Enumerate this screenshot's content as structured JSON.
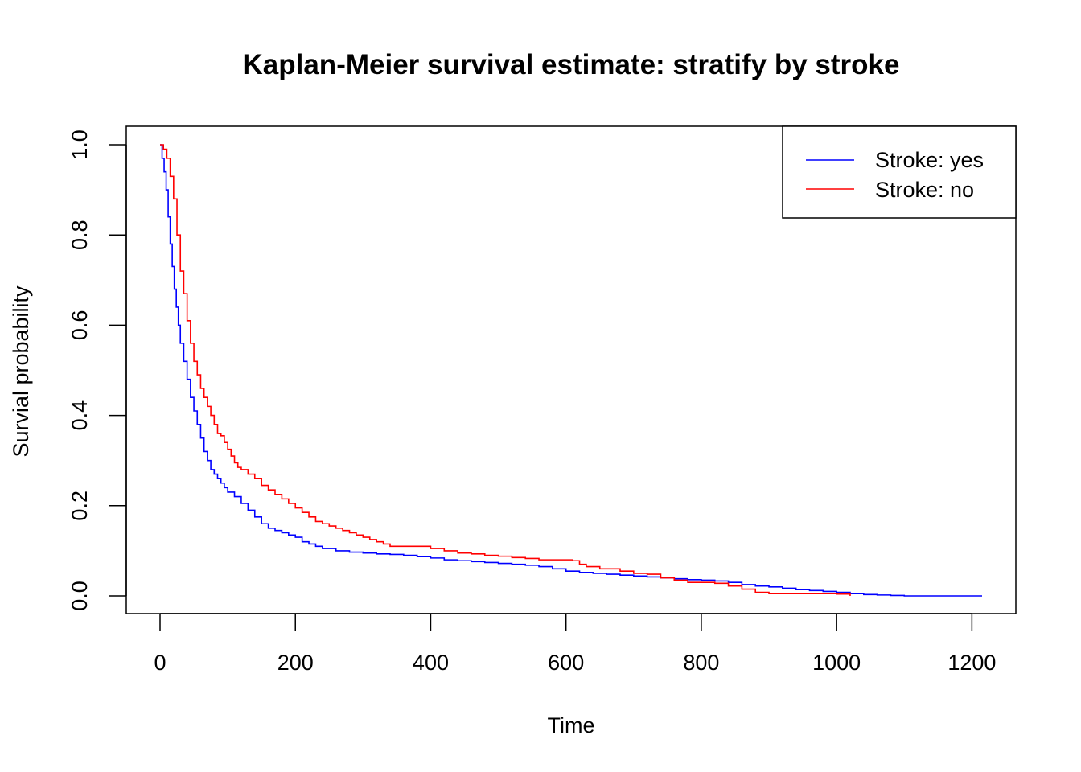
{
  "chart_data": {
    "type": "line",
    "step": true,
    "title": "Kaplan-Meier survival estimate: stratify by stroke",
    "xlabel": "Time",
    "ylabel": "Survial probability",
    "xlim": [
      0,
      1215
    ],
    "ylim": [
      0,
      1
    ],
    "xticks": [
      0,
      200,
      400,
      600,
      800,
      1000,
      1200
    ],
    "yticks": [
      "0.0",
      "0.2",
      "0.4",
      "0.6",
      "0.8",
      "1.0"
    ],
    "grid": false,
    "legend": {
      "position": "top-right"
    },
    "series": [
      {
        "name": "Stroke: yes",
        "color": "#0000ff",
        "x": [
          0,
          3,
          6,
          9,
          12,
          15,
          18,
          21,
          24,
          27,
          30,
          35,
          40,
          45,
          50,
          55,
          60,
          65,
          70,
          75,
          80,
          85,
          90,
          95,
          100,
          110,
          120,
          130,
          140,
          150,
          160,
          170,
          180,
          190,
          200,
          210,
          220,
          230,
          240,
          260,
          280,
          300,
          320,
          340,
          360,
          380,
          400,
          420,
          440,
          460,
          480,
          500,
          520,
          540,
          560,
          580,
          600,
          620,
          640,
          660,
          680,
          700,
          720,
          740,
          760,
          780,
          800,
          820,
          840,
          860,
          880,
          900,
          920,
          940,
          960,
          980,
          1000,
          1020,
          1040,
          1060,
          1080,
          1100,
          1150,
          1215
        ],
        "y": [
          1.0,
          0.97,
          0.94,
          0.9,
          0.84,
          0.78,
          0.73,
          0.68,
          0.64,
          0.6,
          0.56,
          0.52,
          0.48,
          0.44,
          0.41,
          0.38,
          0.35,
          0.32,
          0.3,
          0.28,
          0.27,
          0.26,
          0.25,
          0.24,
          0.23,
          0.22,
          0.205,
          0.19,
          0.175,
          0.16,
          0.15,
          0.145,
          0.14,
          0.135,
          0.13,
          0.12,
          0.115,
          0.11,
          0.105,
          0.1,
          0.097,
          0.095,
          0.093,
          0.092,
          0.09,
          0.087,
          0.084,
          0.08,
          0.078,
          0.076,
          0.074,
          0.072,
          0.07,
          0.068,
          0.065,
          0.06,
          0.055,
          0.052,
          0.05,
          0.048,
          0.046,
          0.044,
          0.042,
          0.04,
          0.038,
          0.036,
          0.035,
          0.033,
          0.03,
          0.025,
          0.022,
          0.02,
          0.017,
          0.014,
          0.012,
          0.01,
          0.008,
          0.005,
          0.003,
          0.002,
          0.001,
          0.0,
          0.0,
          0.0
        ]
      },
      {
        "name": "Stroke: no",
        "color": "#ff0000",
        "x": [
          0,
          5,
          10,
          15,
          20,
          25,
          30,
          35,
          40,
          45,
          50,
          55,
          60,
          65,
          70,
          75,
          80,
          85,
          90,
          95,
          100,
          105,
          110,
          115,
          120,
          130,
          140,
          150,
          160,
          170,
          180,
          190,
          200,
          210,
          220,
          230,
          240,
          250,
          260,
          270,
          280,
          290,
          300,
          310,
          320,
          330,
          340,
          360,
          380,
          400,
          420,
          440,
          460,
          480,
          500,
          520,
          540,
          560,
          580,
          600,
          610,
          620,
          630,
          650,
          680,
          700,
          720,
          740,
          760,
          780,
          800,
          820,
          840,
          860,
          880,
          900,
          940,
          980,
          1000,
          1020
        ],
        "y": [
          1.0,
          0.99,
          0.97,
          0.93,
          0.88,
          0.8,
          0.72,
          0.67,
          0.61,
          0.56,
          0.52,
          0.49,
          0.46,
          0.44,
          0.42,
          0.4,
          0.38,
          0.36,
          0.355,
          0.34,
          0.325,
          0.31,
          0.295,
          0.285,
          0.28,
          0.27,
          0.26,
          0.245,
          0.235,
          0.225,
          0.215,
          0.205,
          0.195,
          0.185,
          0.175,
          0.165,
          0.16,
          0.155,
          0.15,
          0.145,
          0.14,
          0.135,
          0.13,
          0.125,
          0.12,
          0.115,
          0.11,
          0.11,
          0.11,
          0.105,
          0.1,
          0.095,
          0.093,
          0.09,
          0.088,
          0.085,
          0.083,
          0.08,
          0.08,
          0.08,
          0.078,
          0.07,
          0.065,
          0.06,
          0.055,
          0.05,
          0.048,
          0.04,
          0.035,
          0.03,
          0.03,
          0.028,
          0.022,
          0.015,
          0.008,
          0.005,
          0.005,
          0.005,
          0.004,
          0.0
        ]
      }
    ]
  }
}
